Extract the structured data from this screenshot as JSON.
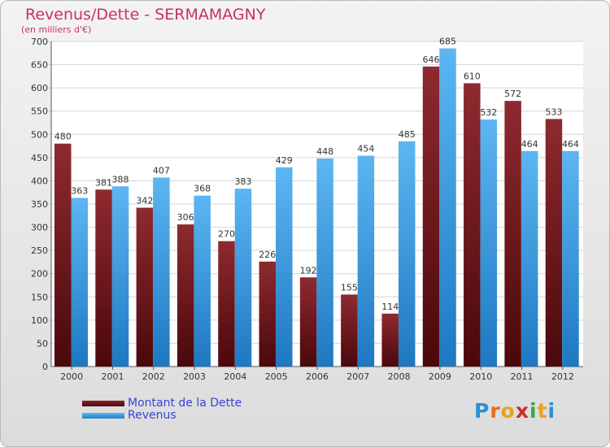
{
  "chart_data": {
    "type": "bar",
    "title": "Revenus/Dette - SERMAMAGNY",
    "subtitle": "(en milliers d'€)",
    "categories": [
      "2000",
      "2001",
      "2002",
      "2003",
      "2004",
      "2005",
      "2006",
      "2007",
      "2008",
      "2009",
      "2010",
      "2011",
      "2012"
    ],
    "series": [
      {
        "name": "Montant de la Dette",
        "color": "#7a1a1e",
        "values": [
          480,
          381,
          342,
          306,
          270,
          226,
          192,
          155,
          114,
          646,
          610,
          572,
          533
        ]
      },
      {
        "name": "Revenus",
        "color": "#3d9ee4",
        "values": [
          363,
          388,
          407,
          368,
          383,
          429,
          448,
          454,
          485,
          685,
          532,
          464,
          464
        ]
      }
    ],
    "ylim": [
      0,
      700
    ],
    "yticks": [
      0,
      50,
      100,
      150,
      200,
      250,
      300,
      350,
      400,
      450,
      500,
      550,
      600,
      650,
      700
    ],
    "grid": true,
    "xlabel": "",
    "ylabel": ""
  },
  "legend": {
    "debt_label": "Montant de la Dette",
    "revenue_label": "Revenus"
  },
  "brand": {
    "letters": [
      "P",
      "r",
      "o",
      "x",
      "i",
      "t",
      "i"
    ],
    "colors": [
      "#2a8fd6",
      "#e86a1e",
      "#e8a21e",
      "#d02a2a",
      "#3aa34a",
      "#e8a21e",
      "#2a8fd6"
    ]
  }
}
